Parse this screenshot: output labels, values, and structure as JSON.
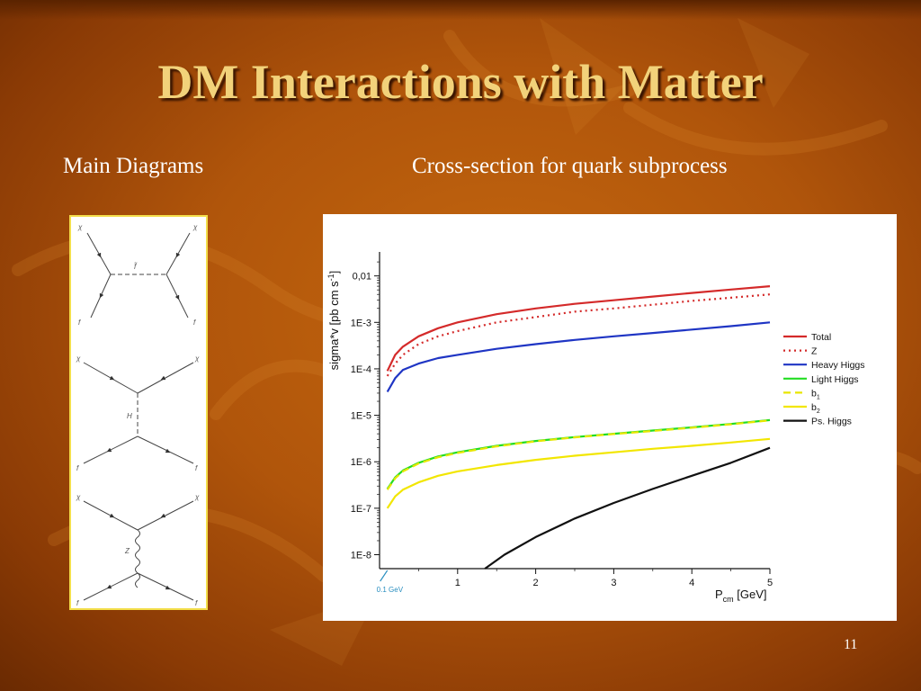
{
  "slide": {
    "title": "DM Interactions with Matter",
    "left_heading": "Main Diagrams",
    "right_heading": "Cross-section for quark subprocess",
    "page_number": "11"
  },
  "feynman": {
    "diagram1": {
      "top_left": "χ",
      "top_right": "χ",
      "bottom_left": "f",
      "bottom_right": "f",
      "propagator": "f̃"
    },
    "diagram2": {
      "top_left": "χ",
      "top_right": "χ",
      "bottom_left": "f",
      "bottom_right": "f",
      "propagator": "H"
    },
    "diagram3": {
      "top_left": "χ",
      "top_right": "χ",
      "bottom_left": "f",
      "bottom_right": "f",
      "propagator": "Z"
    }
  },
  "chart_data": {
    "type": "line",
    "title": "",
    "xlabel": "P",
    "xlabel_sub": "cm",
    "xlabel_unit": " [GeV]",
    "ylabel": "sigma*v [pb cm s",
    "ylabel_sup": "-1",
    "ylabel_end": "]",
    "xlim": [
      0,
      5
    ],
    "ylim_log10": [
      -8.3,
      -1.6
    ],
    "x_ticks": [
      "1",
      "2",
      "3",
      "4",
      "5"
    ],
    "x_tick_values": [
      1,
      2,
      3,
      4,
      5
    ],
    "y_ticks": [
      "0,01",
      "1E-3",
      "1E-4",
      "1E-5",
      "1E-6",
      "1E-7",
      "1E-8"
    ],
    "y_tick_log10": [
      -2,
      -3,
      -4,
      -5,
      -6,
      -7,
      -8
    ],
    "annotation": "0.1 GeV",
    "annotation_x": 0.1,
    "legend_position": "right",
    "series": [
      {
        "name": "Total",
        "sub": "",
        "color": "#d42a2a",
        "dash": "solid",
        "x": [
          0.1,
          0.2,
          0.3,
          0.5,
          0.75,
          1,
          1.5,
          2,
          2.5,
          3,
          3.5,
          4,
          4.5,
          5
        ],
        "y": [
          9e-05,
          0.0002,
          0.0003,
          0.0005,
          0.00075,
          0.001,
          0.0015,
          0.002,
          0.0025,
          0.003,
          0.0036,
          0.0043,
          0.0051,
          0.006
        ]
      },
      {
        "name": "Z",
        "sub": "",
        "color": "#d42a2a",
        "dash": "dotted",
        "x": [
          0.1,
          0.2,
          0.3,
          0.5,
          0.75,
          1,
          1.5,
          2,
          2.5,
          3,
          3.5,
          4,
          4.5,
          5
        ],
        "y": [
          7e-05,
          0.00013,
          0.0002,
          0.00034,
          0.0005,
          0.00065,
          0.001,
          0.0013,
          0.0017,
          0.002,
          0.0024,
          0.0029,
          0.0034,
          0.004
        ]
      },
      {
        "name": "Heavy Higgs",
        "sub": "",
        "color": "#1f35c4",
        "dash": "solid",
        "x": [
          0.1,
          0.2,
          0.3,
          0.5,
          0.75,
          1,
          1.5,
          2,
          2.5,
          3,
          3.5,
          4,
          4.5,
          5
        ],
        "y": [
          3.2e-05,
          6.3e-05,
          9.5e-05,
          0.00013,
          0.00017,
          0.0002,
          0.00027,
          0.00034,
          0.00042,
          0.0005,
          0.00059,
          0.0007,
          0.00083,
          0.001
        ]
      },
      {
        "name": "Light Higgs",
        "sub": "",
        "color": "#22dd22",
        "dash": "solid",
        "x": [
          0.1,
          0.2,
          0.3,
          0.5,
          0.75,
          1,
          1.5,
          2,
          2.5,
          3,
          3.5,
          4,
          4.5,
          5
        ],
        "y": [
          2.6e-07,
          4.6e-07,
          6.5e-07,
          9.5e-07,
          1.3e-06,
          1.6e-06,
          2.2e-06,
          2.8e-06,
          3.4e-06,
          4e-06,
          4.7e-06,
          5.5e-06,
          6.5e-06,
          7.9e-06
        ]
      },
      {
        "name": "b",
        "sub": "1",
        "color": "#e8e600",
        "dash": "dashed",
        "x": [
          0.1,
          0.2,
          0.3,
          0.5,
          0.75,
          1,
          1.5,
          2,
          2.5,
          3,
          3.5,
          4,
          4.5,
          5
        ],
        "y": [
          2.5e-07,
          4.4e-07,
          6.2e-07,
          9.2e-07,
          1.25e-06,
          1.55e-06,
          2.15e-06,
          2.75e-06,
          3.35e-06,
          3.95e-06,
          4.6e-06,
          5.4e-06,
          6.4e-06,
          7.8e-06
        ]
      },
      {
        "name": "b",
        "sub": "2",
        "color": "#f2e600",
        "dash": "solid",
        "x": [
          0.1,
          0.2,
          0.3,
          0.5,
          0.75,
          1,
          1.5,
          2,
          2.5,
          3,
          3.5,
          4,
          4.5,
          5
        ],
        "y": [
          1e-07,
          1.8e-07,
          2.5e-07,
          3.6e-07,
          5e-07,
          6.2e-07,
          8.5e-07,
          1.1e-06,
          1.35e-06,
          1.6e-06,
          1.9e-06,
          2.2e-06,
          2.6e-06,
          3.1e-06
        ]
      },
      {
        "name": "Ps. Higgs",
        "sub": "",
        "color": "#111111",
        "dash": "solid",
        "x": [
          1.35,
          1.6,
          2,
          2.5,
          3,
          3.5,
          4,
          4.5,
          5
        ],
        "y": [
          5e-09,
          1e-08,
          2.4e-08,
          6e-08,
          1.3e-07,
          2.6e-07,
          5e-07,
          9.5e-07,
          2e-06
        ]
      }
    ]
  }
}
